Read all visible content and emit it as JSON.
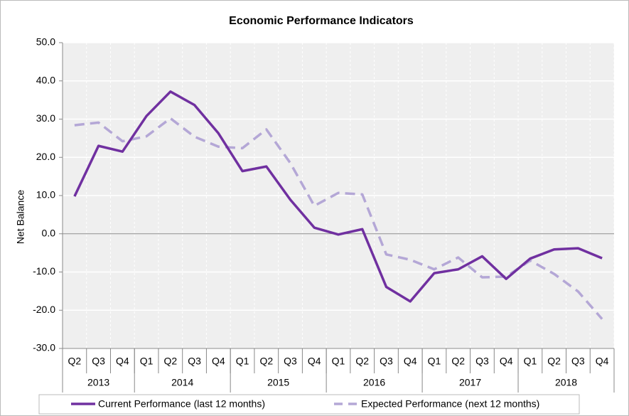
{
  "chart_data": {
    "type": "line",
    "title": "Economic Performance Indicators",
    "y_label": "Net Balance",
    "category_groups": [
      {
        "name": "2013",
        "categories": [
          "Q2",
          "Q3",
          "Q4"
        ]
      },
      {
        "name": "2014",
        "categories": [
          "Q1",
          "Q2",
          "Q3",
          "Q4"
        ]
      },
      {
        "name": "2015",
        "categories": [
          "Q1",
          "Q2",
          "Q3",
          "Q4"
        ]
      },
      {
        "name": "2016",
        "categories": [
          "Q1",
          "Q2",
          "Q3",
          "Q4"
        ]
      },
      {
        "name": "2017",
        "categories": [
          "Q1",
          "Q2",
          "Q3",
          "Q4"
        ]
      },
      {
        "name": "2018",
        "categories": [
          "Q1",
          "Q2",
          "Q3",
          "Q4"
        ]
      }
    ],
    "series": [
      {
        "name": "Current Performance (last 12 months)",
        "color": "#7030a0",
        "dashed": false,
        "values": [
          9.8,
          23,
          21.5,
          30.8,
          37.2,
          33.7,
          26.3,
          16.4,
          17.6,
          8.9,
          1.6,
          -0.2,
          1.2,
          -13.9,
          -17.7,
          -10.3,
          -9.3,
          -5.9,
          -11.8,
          -6.5,
          -4.1,
          -3.8,
          -6.4
        ]
      },
      {
        "name": "Expected Performance (next 12 months)",
        "color": "#b4a7d6",
        "dashed": true,
        "values": [
          28.4,
          29.1,
          24.2,
          25.5,
          30.2,
          25.4,
          22.8,
          22.4,
          27.3,
          18.5,
          7.3,
          10.7,
          10.3,
          -5.4,
          -6.8,
          -9.3,
          -6.2,
          -11.4,
          -11.2,
          -7.0,
          -10.5,
          -15.1,
          -22.3
        ]
      }
    ],
    "ylim": [
      -30,
      50
    ],
    "yticks": [
      {
        "value": -30,
        "label": "-30.0"
      },
      {
        "value": -20,
        "label": "-20.0"
      },
      {
        "value": -10,
        "label": "-10.0"
      },
      {
        "value": 0,
        "label": "0.0"
      },
      {
        "value": 10,
        "label": "10.0"
      },
      {
        "value": 20,
        "label": "20.0"
      },
      {
        "value": 30,
        "label": "30.0"
      },
      {
        "value": 40,
        "label": "40.0"
      },
      {
        "value": 50,
        "label": "50.0"
      }
    ],
    "grid": true,
    "legend": "bottom"
  }
}
